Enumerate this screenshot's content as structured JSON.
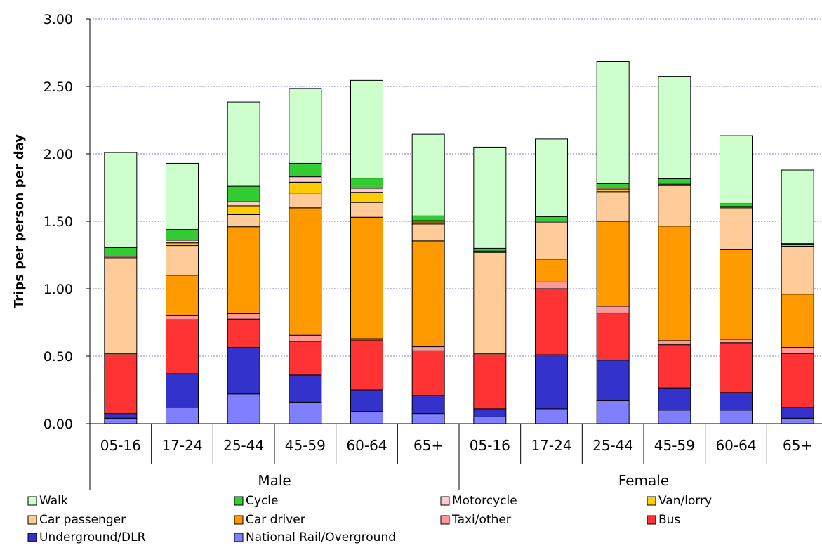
{
  "chart_data": {
    "type": "bar",
    "stacked": true,
    "ylabel": "Trips per person per day",
    "xlabel": "",
    "ylim": [
      0,
      3
    ],
    "yticks": [
      "0.00",
      "0.50",
      "1.00",
      "1.50",
      "2.00",
      "2.50",
      "3.00"
    ],
    "grid": true,
    "legend_position": "bottom",
    "groups": [
      {
        "name": "Male",
        "categories": [
          "05-16",
          "17-24",
          "25-44",
          "45-59",
          "60-64",
          "65+"
        ]
      },
      {
        "name": "Female",
        "categories": [
          "05-16",
          "17-24",
          "25-44",
          "45-59",
          "60-64",
          "65+"
        ]
      }
    ],
    "series": [
      {
        "name": "National Rail/Overground",
        "color": "#7f7fff",
        "values": [
          0.04,
          0.12,
          0.22,
          0.16,
          0.09,
          0.075,
          0.05,
          0.11,
          0.17,
          0.1,
          0.1,
          0.04
        ]
      },
      {
        "name": "Underground/DLR",
        "color": "#3333cc",
        "values": [
          0.035,
          0.25,
          0.345,
          0.2,
          0.16,
          0.135,
          0.06,
          0.4,
          0.3,
          0.165,
          0.13,
          0.08
        ]
      },
      {
        "name": "Bus",
        "color": "#ff3333",
        "values": [
          0.435,
          0.4,
          0.21,
          0.25,
          0.37,
          0.33,
          0.4,
          0.49,
          0.35,
          0.32,
          0.37,
          0.4
        ]
      },
      {
        "name": "Taxi/other",
        "color": "#ff9999",
        "values": [
          0.01,
          0.03,
          0.04,
          0.045,
          0.01,
          0.03,
          0.01,
          0.05,
          0.05,
          0.03,
          0.025,
          0.045
        ]
      },
      {
        "name": "Car driver",
        "color": "#ff9900",
        "values": [
          0.0,
          0.3,
          0.645,
          0.945,
          0.9,
          0.785,
          0.0,
          0.17,
          0.63,
          0.85,
          0.665,
          0.395
        ]
      },
      {
        "name": "Car passenger",
        "color": "#ffcc99",
        "values": [
          0.71,
          0.22,
          0.09,
          0.11,
          0.11,
          0.125,
          0.75,
          0.27,
          0.22,
          0.3,
          0.31,
          0.355
        ]
      },
      {
        "name": "Van/lorry",
        "color": "#ffcc00",
        "values": [
          0.0,
          0.02,
          0.065,
          0.08,
          0.075,
          0.015,
          0.0,
          0.0,
          0.015,
          0.0,
          0.0,
          0.0
        ]
      },
      {
        "name": "Motorcycle",
        "color": "#ffcccc",
        "values": [
          0.01,
          0.02,
          0.03,
          0.04,
          0.03,
          0.01,
          0.01,
          0.01,
          0.01,
          0.01,
          0.01,
          0.01
        ]
      },
      {
        "name": "Cycle",
        "color": "#33cc33",
        "values": [
          0.065,
          0.08,
          0.115,
          0.1,
          0.075,
          0.035,
          0.02,
          0.035,
          0.035,
          0.04,
          0.02,
          0.01
        ]
      },
      {
        "name": "Walk",
        "color": "#ccffcc",
        "values": [
          0.705,
          0.49,
          0.625,
          0.555,
          0.725,
          0.605,
          0.75,
          0.575,
          0.905,
          0.76,
          0.505,
          0.545
        ]
      }
    ]
  },
  "legend_order": [
    "Walk",
    "Cycle",
    "Motorcycle",
    "Van/lorry",
    "Car passenger",
    "Car driver",
    "Taxi/other",
    "Bus",
    "Underground/DLR",
    "National Rail/Overground"
  ]
}
